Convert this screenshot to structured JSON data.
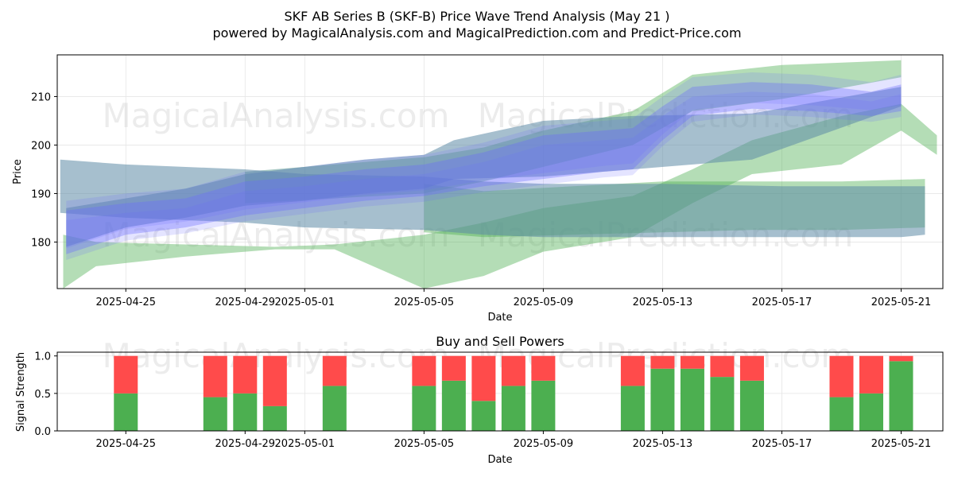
{
  "header": {
    "title": "SKF AB Series B (SKF-B) Price Wave Trend Analysis (May 21 )",
    "subtitle": "powered by MagicalAnalysis.com and MagicalPrediction.com and Predict-Price.com"
  },
  "watermarks": [
    "MagicalAnalysis.com",
    "MagicalPrediction.com"
  ],
  "colors": {
    "price_band_blue": "#6b6bff",
    "price_band_slate": "#5c8aa6",
    "wave_green": "#4caf50",
    "buy": "#4caf50",
    "sell": "#ff4b4b"
  },
  "chart_data": [
    {
      "type": "area",
      "title": "",
      "xlabel": "Date",
      "ylabel": "Price",
      "x_ticks": [
        "2025-04-25",
        "2025-04-29",
        "2025-05-01",
        "2025-05-05",
        "2025-05-09",
        "2025-05-13",
        "2025-05-17",
        "2025-05-21"
      ],
      "y_ticks": [
        180,
        190,
        200,
        210
      ],
      "xlim": [
        "2025-04-22.7",
        "2025-05-22.4"
      ],
      "ylim": [
        170.4,
        218.6
      ],
      "grid": true,
      "series": [
        {
          "style": "blue-band",
          "x": [
            "2025-04-23",
            "2025-04-25",
            "2025-04-27",
            "2025-04-29",
            "2025-05-01",
            "2025-05-03",
            "2025-05-05",
            "2025-05-07",
            "2025-05-09",
            "2025-05-11",
            "2025-05-12",
            "2025-05-13",
            "2025-05-14",
            "2025-05-16",
            "2025-05-18",
            "2025-05-20",
            "2025-05-21"
          ],
          "upper": [
            186.5,
            188.0,
            189.0,
            192.5,
            193.5,
            195.0,
            196.0,
            198.5,
            202.0,
            203.0,
            203.5,
            208.0,
            212.0,
            213.0,
            212.5,
            211.0,
            212.5
          ],
          "lower": [
            177.5,
            181.5,
            183.0,
            185.5,
            187.0,
            188.5,
            189.5,
            191.5,
            193.0,
            194.5,
            195.0,
            201.0,
            206.0,
            207.5,
            207.0,
            206.0,
            207.0
          ]
        },
        {
          "style": "slate-band",
          "x": [
            "2025-04-23",
            "2025-04-25",
            "2025-04-27",
            "2025-04-29",
            "2025-05-01",
            "2025-05-03",
            "2025-05-05",
            "2025-05-06",
            "2025-05-09",
            "2025-05-12",
            "2025-05-16",
            "2025-05-21"
          ],
          "upper": [
            187.0,
            189.0,
            191.0,
            194.0,
            195.5,
            197.0,
            198.0,
            201.0,
            205.0,
            206.0,
            206.5,
            212.0
          ],
          "lower": [
            179.0,
            183.0,
            185.0,
            187.5,
            188.5,
            190.0,
            191.0,
            193.0,
            193.5,
            195.0,
            197.0,
            208.0
          ]
        },
        {
          "style": "slate-band",
          "x": [
            "2025-04-22.8",
            "2025-04-25",
            "2025-04-29",
            "2025-05-01",
            "2025-05-05",
            "2025-05-07",
            "2025-05-09",
            "2025-05-13",
            "2025-05-17",
            "2025-05-21",
            "2025-05-21.8"
          ],
          "upper": [
            197.0,
            196.0,
            195.0,
            194.0,
            193.5,
            192.5,
            192.0,
            192.0,
            191.5,
            191.5,
            191.5
          ],
          "lower": [
            186.0,
            185.0,
            184.0,
            183.0,
            182.5,
            181.5,
            181.0,
            181.0,
            181.0,
            181.0,
            181.5
          ]
        },
        {
          "style": "green-wave",
          "x": [
            "2025-04-22.9",
            "2025-04-24",
            "2025-04-27",
            "2025-04-30",
            "2025-05-02",
            "2025-05-05",
            "2025-05-07",
            "2025-05-09",
            "2025-05-12",
            "2025-05-14",
            "2025-05-16",
            "2025-05-19",
            "2025-05-21",
            "2025-05-22.2"
          ],
          "upper": [
            181.5,
            180.0,
            179.5,
            179.0,
            179.5,
            181.5,
            184.0,
            187.0,
            189.5,
            195.0,
            201.0,
            206.0,
            208.5,
            202.0
          ],
          "lower": [
            170.4,
            175.0,
            177.0,
            178.5,
            178.5,
            170.4,
            173.0,
            178.0,
            181.0,
            188.0,
            194.0,
            196.0,
            203.0,
            198.0
          ]
        },
        {
          "style": "green-wave",
          "x": [
            "2025-05-05",
            "2025-05-07",
            "2025-05-10",
            "2025-05-13",
            "2025-05-16",
            "2025-05-19",
            "2025-05-21.8"
          ],
          "upper": [
            192.0,
            190.5,
            191.5,
            192.5,
            192.5,
            192.5,
            193.0
          ],
          "lower": [
            182.0,
            181.0,
            181.5,
            182.0,
            182.5,
            182.5,
            183.0
          ]
        },
        {
          "style": "green-wave",
          "x": [
            "2025-04-29",
            "2025-05-02",
            "2025-05-05",
            "2025-05-07",
            "2025-05-09",
            "2025-05-12",
            "2025-05-14",
            "2025-05-17",
            "2025-05-21"
          ],
          "upper": [
            194.5,
            196.0,
            197.5,
            199.5,
            203.0,
            207.0,
            214.5,
            216.5,
            217.5
          ],
          "lower": [
            188.0,
            189.0,
            190.0,
            192.5,
            195.5,
            200.0,
            207.0,
            209.5,
            214.0
          ]
        }
      ]
    },
    {
      "type": "bar",
      "title": "Buy and Sell Powers",
      "xlabel": "Date",
      "ylabel": "Signal Strength",
      "x_ticks": [
        "2025-04-25",
        "2025-04-29",
        "2025-05-01",
        "2025-05-05",
        "2025-05-09",
        "2025-05-13",
        "2025-05-17",
        "2025-05-21"
      ],
      "y_ticks": [
        "0.0",
        "0.5",
        "1.0"
      ],
      "ylim": [
        0,
        1.05
      ],
      "grid": true,
      "stacked": true,
      "categories": [
        "2025-04-25",
        "2025-04-28",
        "2025-04-29",
        "2025-04-30",
        "2025-05-02",
        "2025-05-05",
        "2025-05-06",
        "2025-05-07",
        "2025-05-08",
        "2025-05-09",
        "2025-05-12",
        "2025-05-13",
        "2025-05-14",
        "2025-05-15",
        "2025-05-16",
        "2025-05-19",
        "2025-05-20",
        "2025-05-21"
      ],
      "series": [
        {
          "role": "buy",
          "values": [
            0.5,
            0.45,
            0.5,
            0.33,
            0.6,
            0.6,
            0.67,
            0.4,
            0.6,
            0.67,
            0.6,
            0.83,
            0.83,
            0.72,
            0.67,
            0.45,
            0.5,
            0.93
          ]
        },
        {
          "role": "sell",
          "values": [
            0.5,
            0.55,
            0.5,
            0.67,
            0.4,
            0.4,
            0.33,
            0.6,
            0.4,
            0.33,
            0.4,
            0.17,
            0.17,
            0.28,
            0.33,
            0.55,
            0.5,
            0.07
          ]
        }
      ]
    }
  ]
}
